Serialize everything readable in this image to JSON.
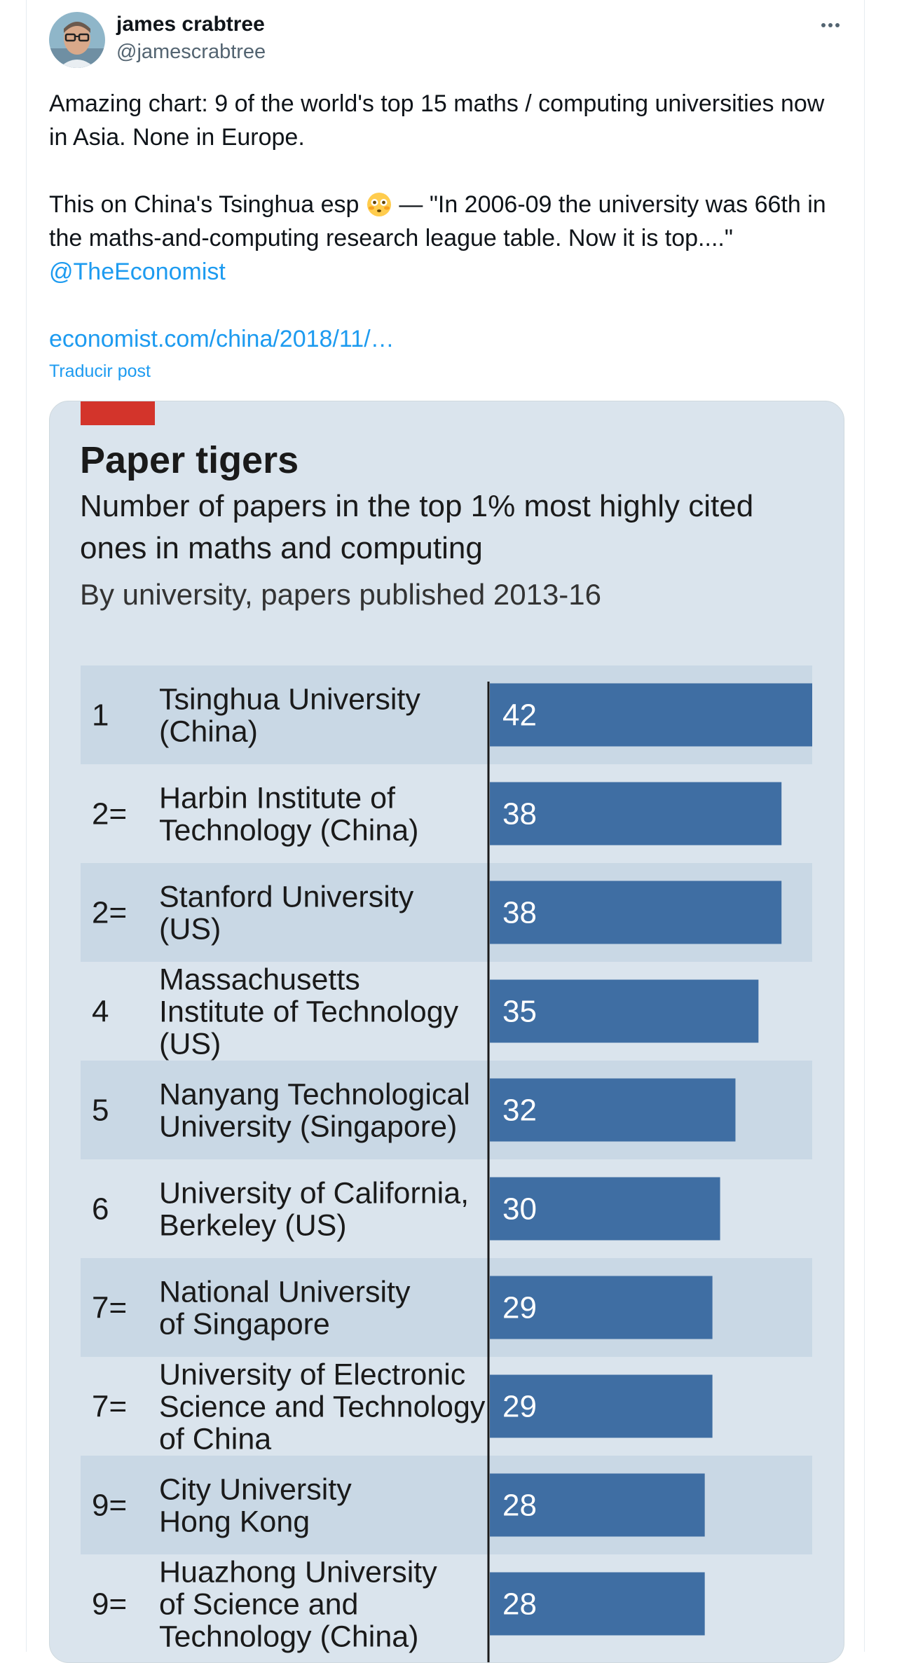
{
  "author": {
    "name": "james crabtree",
    "handle": "@jamescrabtree"
  },
  "tweet": {
    "line1": "Amazing chart: 9 of the world's top 15 maths / computing universities now in Asia. None in Europe.",
    "line2_before_emoji": "This on China's Tsinghua esp ",
    "line2_after_emoji": " — \"In 2006-09 the university was 66th in the maths-and-computing research league table. Now it is top....\"",
    "mention": "@TheEconomist",
    "url": "economist.com/china/2018/11/…",
    "translate": "Traducir post"
  },
  "colors": {
    "accent": "#1d9bf0",
    "economist_red": "#d3342b",
    "bar": "#3f6ea3",
    "band": "#c9d8e5",
    "bg": "#dae4ed"
  },
  "chart_data": {
    "type": "bar",
    "orientation": "horizontal",
    "title": "Paper tigers",
    "subtitle": "Number of papers in the top 1% most highly cited ones in maths and computing",
    "note": "By university, papers published 2013-16",
    "xlim": [
      0,
      42
    ],
    "rows": [
      {
        "rank": "1",
        "name": [
          "Tsinghua University",
          "(China)"
        ],
        "value": 42
      },
      {
        "rank": "2=",
        "name": [
          "Harbin Institute of",
          "Technology (China)"
        ],
        "value": 38
      },
      {
        "rank": "2=",
        "name": [
          "Stanford University",
          "(US)"
        ],
        "value": 38
      },
      {
        "rank": "4",
        "name": [
          "Massachusetts",
          "Institute of Technology",
          "(US)"
        ],
        "value": 35
      },
      {
        "rank": "5",
        "name": [
          "Nanyang Technological",
          "University (Singapore)"
        ],
        "value": 32
      },
      {
        "rank": "6",
        "name": [
          "University of California,",
          "Berkeley (US)"
        ],
        "value": 30
      },
      {
        "rank": "7=",
        "name": [
          "National University",
          "of Singapore"
        ],
        "value": 29
      },
      {
        "rank": "7=",
        "name": [
          "University of Electronic",
          "Science and Technology",
          "of China"
        ],
        "value": 29
      },
      {
        "rank": "9=",
        "name": [
          "City University",
          "Hong Kong"
        ],
        "value": 28
      },
      {
        "rank": "9=",
        "name": [
          "Huazhong University",
          "of Science and",
          "Technology (China)"
        ],
        "value": 28
      }
    ]
  }
}
